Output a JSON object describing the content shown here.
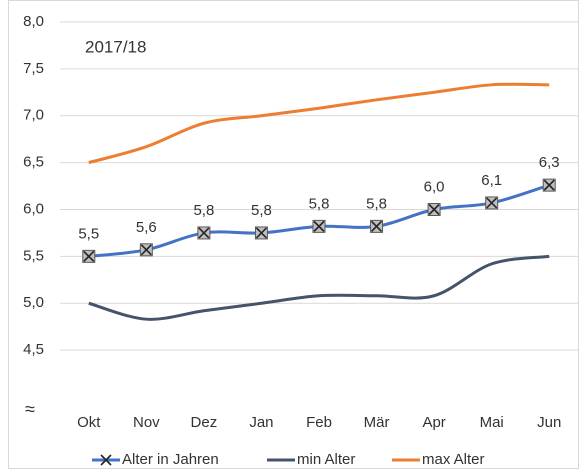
{
  "chart_data": {
    "type": "line",
    "title": "2017/18",
    "axis_break": "≈",
    "categories": [
      "Okt",
      "Nov",
      "Dez",
      "Jan",
      "Feb",
      "Mär",
      "Apr",
      "Mai",
      "Jun"
    ],
    "series": [
      {
        "name": "Alter in Jahren",
        "color": "#4472c4",
        "marker": "x-square",
        "values": [
          5.5,
          5.57,
          5.75,
          5.75,
          5.82,
          5.82,
          6.0,
          6.07,
          6.26
        ],
        "value_labels": [
          "5,5",
          "5,6",
          "5,8",
          "5,8",
          "5,8",
          "5,8",
          "6,0",
          "6,1",
          "6,3"
        ]
      },
      {
        "name": "min Alter",
        "color": "#44546a",
        "values": [
          5.0,
          4.83,
          4.92,
          5.0,
          5.08,
          5.08,
          5.08,
          5.42,
          5.5
        ]
      },
      {
        "name": "max Alter",
        "color": "#ed7d31",
        "values": [
          6.5,
          6.67,
          6.92,
          7.0,
          7.08,
          7.17,
          7.25,
          7.33,
          7.33
        ]
      }
    ],
    "ylim": [
      4.0,
      8.0
    ],
    "yticks": [
      {
        "value": 4.5,
        "label": "4,5"
      },
      {
        "value": 5.0,
        "label": "5,0"
      },
      {
        "value": 5.5,
        "label": "5,5"
      },
      {
        "value": 6.0,
        "label": "6,0"
      },
      {
        "value": 6.5,
        "label": "6,5"
      },
      {
        "value": 7.0,
        "label": "7,0"
      },
      {
        "value": 7.5,
        "label": "7,5"
      },
      {
        "value": 8.0,
        "label": "8,0"
      }
    ],
    "grid": true,
    "smooth": true,
    "legend": "bottom"
  }
}
